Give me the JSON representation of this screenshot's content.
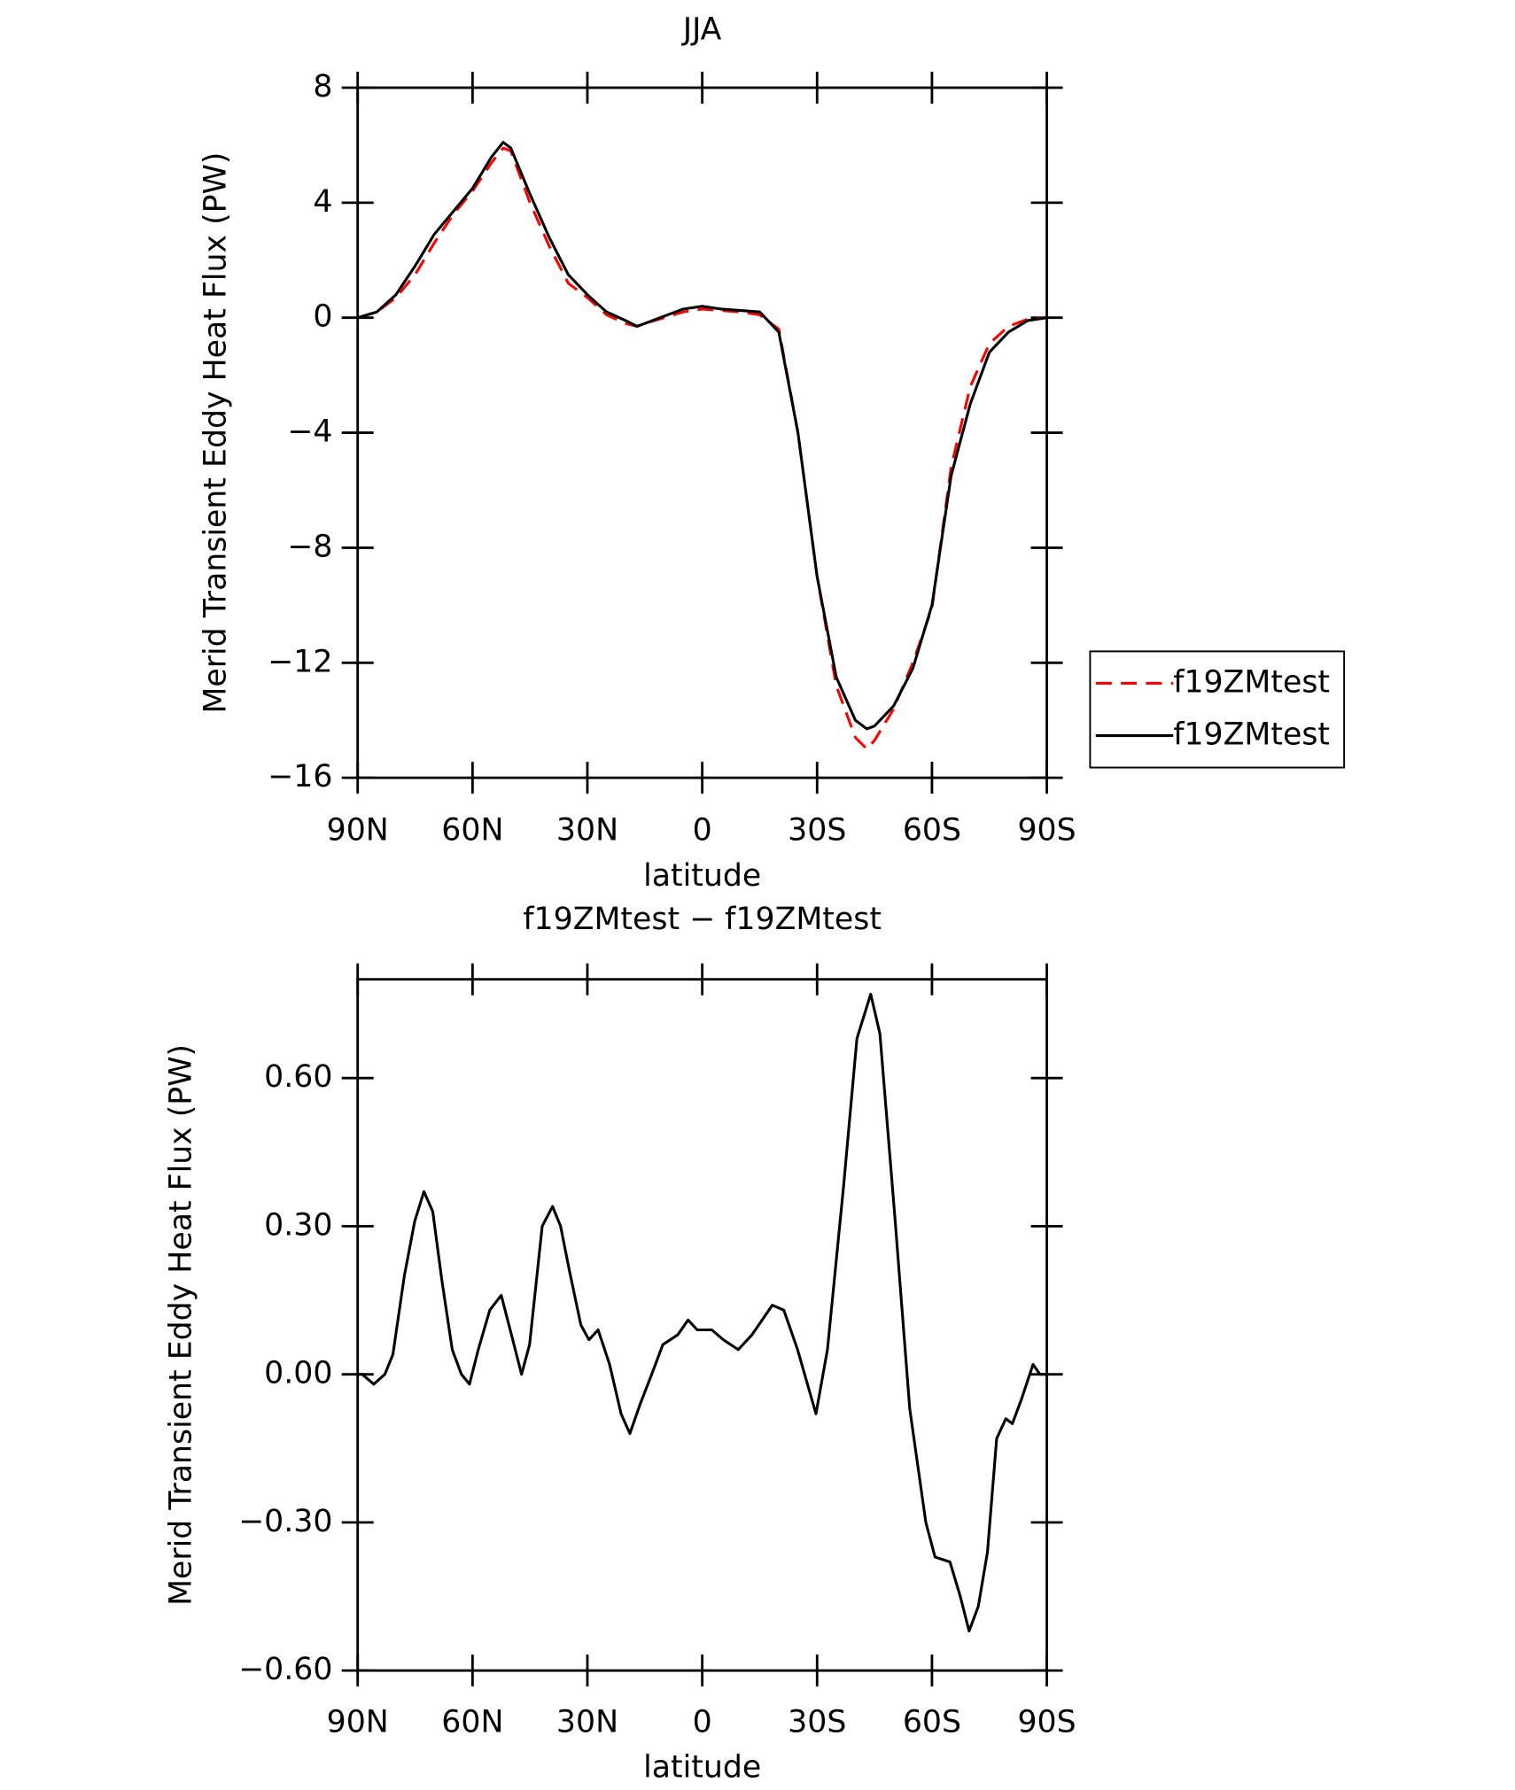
{
  "chart_data": [
    {
      "type": "line",
      "title": "JJA",
      "ylabel": "Merid Transient Eddy Heat Flux (PW)",
      "xlabel": "latitude",
      "xlim": [
        90,
        -90
      ],
      "xticks": [
        {
          "value": 90,
          "label": "90N"
        },
        {
          "value": 60,
          "label": "60N"
        },
        {
          "value": 30,
          "label": "30N"
        },
        0,
        {
          "value": -30,
          "label": "30S"
        },
        {
          "value": -60,
          "label": "60S"
        },
        {
          "value": -90,
          "label": "90S"
        }
      ],
      "ylim": [
        -16,
        8
      ],
      "yticks": [
        {
          "value": -16,
          "label": "−16"
        },
        {
          "value": -12,
          "label": "−12"
        },
        {
          "value": -8,
          "label": "−8"
        },
        {
          "value": -4,
          "label": "−4"
        },
        0,
        4,
        8
      ],
      "legend": "right",
      "x": [
        90,
        85,
        80,
        75,
        70,
        65,
        60,
        55,
        52,
        50,
        45,
        40,
        35,
        30,
        25,
        20,
        17,
        15,
        10,
        5,
        0,
        -5,
        -10,
        -15,
        -20,
        -25,
        -30,
        -35,
        -40,
        -43,
        -45,
        -50,
        -55,
        -60,
        -65,
        -70,
        -75,
        -80,
        -85,
        -90
      ],
      "series": [
        {
          "name": "f19ZMtest",
          "color": "#ff0000",
          "dashed": true,
          "values": [
            0,
            0.2,
            0.7,
            1.5,
            2.6,
            3.6,
            4.4,
            5.4,
            5.9,
            5.8,
            4.0,
            2.5,
            1.2,
            0.7,
            0.1,
            -0.2,
            -0.3,
            -0.2,
            0,
            0.2,
            0.3,
            0.25,
            0.2,
            0.1,
            -0.4,
            -4,
            -9,
            -12.8,
            -14.6,
            -15,
            -14.7,
            -13.6,
            -12,
            -10.1,
            -5.2,
            -2.4,
            -0.9,
            -0.3,
            -0.05,
            0
          ]
        },
        {
          "name": "f19ZMtest",
          "color": "#000000",
          "dashed": false,
          "values": [
            0,
            0.2,
            0.8,
            1.8,
            2.9,
            3.7,
            4.5,
            5.6,
            6.1,
            5.9,
            4.3,
            2.8,
            1.5,
            0.8,
            0.2,
            -0.1,
            -0.3,
            -0.2,
            0.05,
            0.3,
            0.4,
            0.3,
            0.25,
            0.2,
            -0.5,
            -4,
            -9,
            -12.5,
            -14,
            -14.3,
            -14.2,
            -13.5,
            -12.2,
            -10,
            -5.5,
            -3,
            -1.2,
            -0.5,
            -0.1,
            0
          ]
        }
      ]
    },
    {
      "type": "line",
      "title": "f19ZMtest − f19ZMtest",
      "ylabel": "Merid Transient Eddy Heat Flux (PW)",
      "xlabel": "latitude",
      "xlim": [
        90,
        -90
      ],
      "xticks": [
        {
          "value": 90,
          "label": "90N"
        },
        {
          "value": 60,
          "label": "60N"
        },
        {
          "value": 30,
          "label": "30N"
        },
        0,
        {
          "value": -30,
          "label": "30S"
        },
        {
          "value": -60,
          "label": "60S"
        },
        {
          "value": -90,
          "label": "90S"
        }
      ],
      "ylim": [
        -0.6,
        0.8
      ],
      "yticks": [
        {
          "value": -0.6,
          "label": "−0.60"
        },
        {
          "value": -0.3,
          "label": "−0.30"
        },
        {
          "value": 0,
          "label": "0.00"
        },
        {
          "value": 0.3,
          "label": "0.30"
        },
        {
          "value": 0.6,
          "label": "0.60"
        }
      ],
      "x": [
        90,
        88.8,
        85.8,
        82.9,
        80.8,
        77.8,
        75.1,
        72.7,
        70.4,
        68,
        65.3,
        62.9,
        60.8,
        58.5,
        55.5,
        52.5,
        49.5,
        47.2,
        45.1,
        41.8,
        39.1,
        37,
        34.7,
        31.7,
        29.6,
        27.2,
        24.2,
        21.2,
        18.9,
        16.2,
        13.2,
        10.3,
        6.4,
        3.7,
        1.3,
        -2.5,
        -5.5,
        -9.4,
        -13,
        -18.3,
        -21.3,
        -24.9,
        -29.7,
        -32.7,
        -36.9,
        -40.4,
        -44,
        -46.4,
        -50.3,
        -54.2,
        -58.4,
        -60.8,
        -64.7,
        -67.4,
        -69.7,
        -72.1,
        -74.5,
        -76.9,
        -79.3,
        -81,
        -83.4,
        -86.4,
        -88.2,
        -90
      ],
      "series": [
        {
          "color": "#000000",
          "dashed": false,
          "values": [
            0,
            0,
            -0.02,
            0,
            0.04,
            0.2,
            0.31,
            0.37,
            0.33,
            0.19,
            0.05,
            0,
            -0.02,
            0.05,
            0.13,
            0.16,
            0.07,
            0,
            0.06,
            0.3,
            0.34,
            0.3,
            0.21,
            0.1,
            0.07,
            0.09,
            0.02,
            -0.08,
            -0.12,
            -0.06,
            0,
            0.06,
            0.08,
            0.11,
            0.09,
            0.09,
            0.07,
            0.05,
            0.08,
            0.14,
            0.13,
            0.05,
            -0.08,
            0.05,
            0.38,
            0.68,
            0.77,
            0.69,
            0.32,
            -0.07,
            -0.3,
            -0.37,
            -0.38,
            -0.45,
            -0.52,
            -0.47,
            -0.36,
            -0.13,
            -0.09,
            -0.1,
            -0.05,
            0.02,
            0,
            0
          ]
        }
      ]
    }
  ]
}
